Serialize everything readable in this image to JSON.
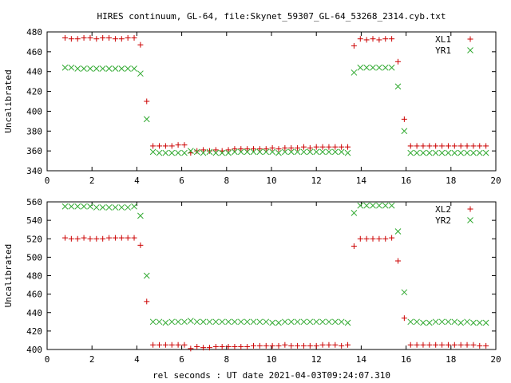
{
  "title": "HIRES continuum, GL-64, file:Skynet_59307_GL-64_53268_2314.cyb.txt",
  "xlabel": "rel seconds : UT date 2021-04-03T09:24:07.310",
  "colors": {
    "series1": "#cc0000",
    "series2": "#33aa33",
    "frame": "#000000"
  },
  "chart_data": [
    {
      "type": "scatter",
      "ylabel": "Uncalibrated",
      "xlim": [
        0,
        20
      ],
      "ylim": [
        340,
        480
      ],
      "xticks": [
        "0",
        "2",
        "4",
        "6",
        "8",
        "10",
        "12",
        "14",
        "16",
        "18",
        "20"
      ],
      "yticks": [
        "340",
        "360",
        "380",
        "400",
        "420",
        "440",
        "460",
        "480"
      ],
      "xtick_values": [
        0,
        2,
        4,
        6,
        8,
        10,
        12,
        14,
        16,
        18,
        20
      ],
      "ytick_values": [
        340,
        360,
        380,
        400,
        420,
        440,
        460,
        480
      ],
      "legend_position": "top-right",
      "series": [
        {
          "name": "XL1",
          "marker": "plus",
          "x": [
            0.8,
            1.08,
            1.36,
            1.64,
            1.92,
            2.2,
            2.48,
            2.76,
            3.04,
            3.32,
            3.6,
            3.88,
            4.16,
            4.44,
            4.72,
            5.0,
            5.28,
            5.56,
            5.84,
            6.12,
            6.4,
            6.68,
            6.96,
            7.24,
            7.52,
            7.8,
            8.08,
            8.36,
            8.64,
            8.92,
            9.2,
            9.48,
            9.76,
            10.04,
            10.32,
            10.6,
            10.88,
            11.16,
            11.44,
            11.72,
            12.0,
            12.28,
            12.56,
            12.84,
            13.12,
            13.4,
            13.68,
            13.96,
            14.24,
            14.52,
            14.8,
            15.08,
            15.36,
            15.64,
            15.92,
            16.2,
            16.48,
            16.76,
            17.04,
            17.32,
            17.6,
            17.88,
            18.16,
            18.44,
            18.72,
            19.0,
            19.28,
            19.56
          ],
          "y": [
            474,
            473,
            473,
            474,
            474,
            473,
            474,
            474,
            473,
            473,
            474,
            474,
            467,
            410,
            365,
            365,
            365,
            365,
            366,
            366,
            358,
            360,
            361,
            360,
            361,
            360,
            361,
            362,
            362,
            362,
            362,
            362,
            362,
            363,
            362,
            363,
            363,
            363,
            364,
            363,
            364,
            364,
            364,
            364,
            364,
            364,
            466,
            473,
            472,
            473,
            472,
            473,
            473,
            450,
            392,
            365,
            365,
            365,
            365,
            365,
            365,
            365,
            365,
            365,
            365,
            365,
            365,
            365
          ]
        },
        {
          "name": "YR1",
          "marker": "cross",
          "x": [
            0.8,
            1.08,
            1.36,
            1.64,
            1.92,
            2.2,
            2.48,
            2.76,
            3.04,
            3.32,
            3.6,
            3.88,
            4.16,
            4.44,
            4.72,
            5.0,
            5.28,
            5.56,
            5.84,
            6.12,
            6.4,
            6.68,
            6.96,
            7.24,
            7.52,
            7.8,
            8.08,
            8.36,
            8.64,
            8.92,
            9.2,
            9.48,
            9.76,
            10.04,
            10.32,
            10.6,
            10.88,
            11.16,
            11.44,
            11.72,
            12.0,
            12.28,
            12.56,
            12.84,
            13.12,
            13.4,
            13.68,
            13.96,
            14.24,
            14.52,
            14.8,
            15.08,
            15.36,
            15.64,
            15.92,
            16.2,
            16.48,
            16.76,
            17.04,
            17.32,
            17.6,
            17.88,
            18.16,
            18.44,
            18.72,
            19.0,
            19.28,
            19.56
          ],
          "y": [
            444,
            444,
            443,
            443,
            443,
            443,
            443,
            443,
            443,
            443,
            443,
            443,
            438,
            392,
            359,
            358,
            358,
            358,
            358,
            358,
            360,
            359,
            358,
            359,
            358,
            358,
            358,
            359,
            359,
            359,
            359,
            359,
            359,
            359,
            358,
            359,
            359,
            359,
            359,
            359,
            359,
            359,
            359,
            359,
            359,
            358,
            439,
            444,
            444,
            444,
            444,
            444,
            444,
            425,
            380,
            358,
            358,
            358,
            358,
            358,
            358,
            358,
            358,
            358,
            358,
            358,
            358,
            358
          ]
        }
      ]
    },
    {
      "type": "scatter",
      "ylabel": "Uncalibrated",
      "xlim": [
        0,
        20
      ],
      "ylim": [
        400,
        560
      ],
      "xticks": [
        "0",
        "2",
        "4",
        "6",
        "8",
        "10",
        "12",
        "14",
        "16",
        "18",
        "20"
      ],
      "yticks": [
        "400",
        "420",
        "440",
        "460",
        "480",
        "500",
        "520",
        "540",
        "560"
      ],
      "xtick_values": [
        0,
        2,
        4,
        6,
        8,
        10,
        12,
        14,
        16,
        18,
        20
      ],
      "ytick_values": [
        400,
        420,
        440,
        460,
        480,
        500,
        520,
        540,
        560
      ],
      "legend_position": "top-right",
      "series": [
        {
          "name": "XL2",
          "marker": "plus",
          "x": [
            0.8,
            1.08,
            1.36,
            1.64,
            1.92,
            2.2,
            2.48,
            2.76,
            3.04,
            3.32,
            3.6,
            3.88,
            4.16,
            4.44,
            4.72,
            5.0,
            5.28,
            5.56,
            5.84,
            6.12,
            6.4,
            6.68,
            6.96,
            7.24,
            7.52,
            7.8,
            8.08,
            8.36,
            8.64,
            8.92,
            9.2,
            9.48,
            9.76,
            10.04,
            10.32,
            10.6,
            10.88,
            11.16,
            11.44,
            11.72,
            12.0,
            12.28,
            12.56,
            12.84,
            13.12,
            13.4,
            13.68,
            13.96,
            14.24,
            14.52,
            14.8,
            15.08,
            15.36,
            15.64,
            15.92,
            16.2,
            16.48,
            16.76,
            17.04,
            17.32,
            17.6,
            17.88,
            18.16,
            18.44,
            18.72,
            19.0,
            19.28,
            19.56
          ],
          "y": [
            521,
            520,
            520,
            521,
            520,
            520,
            520,
            521,
            521,
            521,
            521,
            521,
            513,
            452,
            405,
            405,
            405,
            405,
            405,
            405,
            401,
            403,
            402,
            402,
            403,
            403,
            403,
            403,
            403,
            403,
            404,
            404,
            404,
            404,
            404,
            405,
            404,
            404,
            404,
            404,
            404,
            405,
            405,
            405,
            404,
            405,
            512,
            520,
            520,
            520,
            520,
            520,
            521,
            496,
            434,
            405,
            405,
            405,
            405,
            405,
            405,
            405,
            405,
            405,
            405,
            405,
            404,
            404
          ]
        },
        {
          "name": "YR2",
          "marker": "cross",
          "x": [
            0.8,
            1.08,
            1.36,
            1.64,
            1.92,
            2.2,
            2.48,
            2.76,
            3.04,
            3.32,
            3.6,
            3.88,
            4.16,
            4.44,
            4.72,
            5.0,
            5.28,
            5.56,
            5.84,
            6.12,
            6.4,
            6.68,
            6.96,
            7.24,
            7.52,
            7.8,
            8.08,
            8.36,
            8.64,
            8.92,
            9.2,
            9.48,
            9.76,
            10.04,
            10.32,
            10.6,
            10.88,
            11.16,
            11.44,
            11.72,
            12.0,
            12.28,
            12.56,
            12.84,
            13.12,
            13.4,
            13.68,
            13.96,
            14.24,
            14.52,
            14.8,
            15.08,
            15.36,
            15.64,
            15.92,
            16.2,
            16.48,
            16.76,
            17.04,
            17.32,
            17.6,
            17.88,
            18.16,
            18.44,
            18.72,
            19.0,
            19.28,
            19.56
          ],
          "y": [
            555,
            555,
            555,
            555,
            555,
            554,
            554,
            554,
            554,
            554,
            554,
            555,
            545,
            480,
            430,
            430,
            429,
            430,
            430,
            430,
            431,
            430,
            430,
            430,
            430,
            430,
            430,
            430,
            430,
            430,
            430,
            430,
            430,
            429,
            429,
            430,
            430,
            430,
            430,
            430,
            430,
            430,
            430,
            430,
            430,
            429,
            548,
            556,
            556,
            556,
            556,
            556,
            556,
            528,
            462,
            430,
            430,
            429,
            429,
            430,
            430,
            430,
            430,
            429,
            430,
            429,
            429,
            429
          ]
        }
      ]
    }
  ]
}
